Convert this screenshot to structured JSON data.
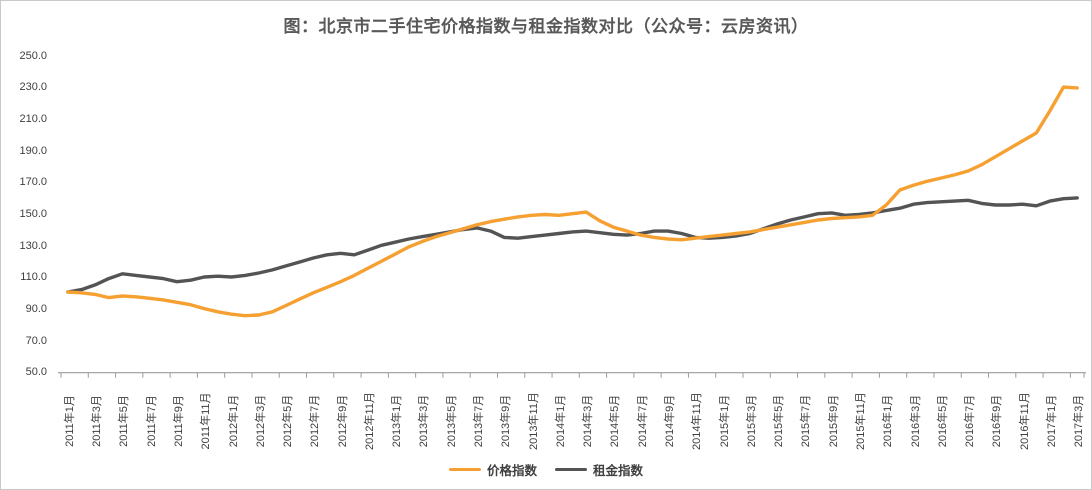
{
  "title": "图：北京市二手住宅价格指数与租金指数对比（公众号：云房资讯）",
  "colors": {
    "price": "#F5A031",
    "rent": "#545454",
    "axis": "#9b9b9b",
    "label_text": "#3f3f3f",
    "title_text": "#595959"
  },
  "legend": {
    "items": [
      {
        "label": "价格指数",
        "color": "#F5A031"
      },
      {
        "label": "租金指数",
        "color": "#545454"
      }
    ]
  },
  "chart_data": {
    "type": "line",
    "title": "图：北京市二手住宅价格指数与租金指数对比（公众号：云房资讯）",
    "ylim": [
      50,
      250
    ],
    "ytick_step": 20,
    "y_tick_labels": [
      "250.0",
      "230.0",
      "210.0",
      "190.0",
      "170.0",
      "150.0",
      "130.0",
      "110.0",
      "90.0",
      "70.0",
      "50.0"
    ],
    "x_first_month": "2011年1月",
    "x_last_month": "2017年3月",
    "x_label_interval_months": 2,
    "x_labels": [
      "2011年1月",
      "2011年3月",
      "2011年5月",
      "2011年7月",
      "2011年9月",
      "2011年11月",
      "2012年1月",
      "2012年3月",
      "2012年5月",
      "2012年7月",
      "2012年9月",
      "2012年11月",
      "2013年1月",
      "2013年3月",
      "2013年5月",
      "2013年7月",
      "2013年9月",
      "2013年11月",
      "2014年1月",
      "2014年3月",
      "2014年5月",
      "2014年7月",
      "2014年9月",
      "2014年11月",
      "2015年1月",
      "2015年3月",
      "2015年5月",
      "2015年7月",
      "2015年9月",
      "2015年11月",
      "2016年1月",
      "2016年3月",
      "2016年5月",
      "2016年7月",
      "2016年9月",
      "2016年11月",
      "2017年1月",
      "2017年3月"
    ],
    "grid": false,
    "legend_position": "bottom-center",
    "series": [
      {
        "name": "价格指数",
        "color": "#F5A031",
        "values": [
          101,
          100.5,
          99.5,
          97.5,
          98.5,
          98,
          97,
          96,
          94.5,
          93,
          90.5,
          88.5,
          87,
          86,
          86.5,
          88.5,
          92.5,
          96.5,
          100.5,
          104,
          107.5,
          111.5,
          116,
          120.5,
          125,
          129.5,
          133,
          136,
          138.5,
          141,
          143.5,
          145.5,
          147,
          148.5,
          149.5,
          150,
          149.5,
          150.5,
          151.5,
          146,
          142,
          139.5,
          137,
          135.5,
          134.5,
          134,
          135,
          136,
          137,
          138,
          139,
          140.5,
          142,
          143.5,
          145,
          146.5,
          147.5,
          148,
          148.5,
          149.5,
          156,
          165.5,
          168.5,
          171,
          173,
          175,
          177.5,
          181.5,
          186.5,
          191.5,
          196.5,
          201.5,
          215.5,
          230.5,
          230
        ]
      },
      {
        "name": "租金指数",
        "color": "#545454",
        "values": [
          101,
          102.5,
          105.5,
          109.5,
          112.5,
          111.5,
          110.5,
          109.5,
          107.5,
          108.5,
          110.5,
          111,
          110.5,
          111.5,
          113,
          115,
          117.5,
          120,
          122.5,
          124.5,
          125.5,
          124.5,
          127.5,
          130.5,
          132.5,
          134.5,
          136,
          137.5,
          139,
          140.5,
          141.5,
          139.5,
          135.5,
          135,
          136,
          137,
          138,
          139,
          139.5,
          138.5,
          137.5,
          137,
          138,
          139.5,
          139.5,
          138,
          135.5,
          135,
          135.5,
          136.5,
          138,
          141,
          144,
          146.5,
          148.5,
          150.5,
          151,
          149.5,
          150,
          151,
          152.5,
          154,
          156.5,
          157.5,
          158,
          158.5,
          159,
          157,
          156,
          156,
          156.5,
          155.5,
          158.5,
          160,
          160.5
        ]
      }
    ]
  }
}
